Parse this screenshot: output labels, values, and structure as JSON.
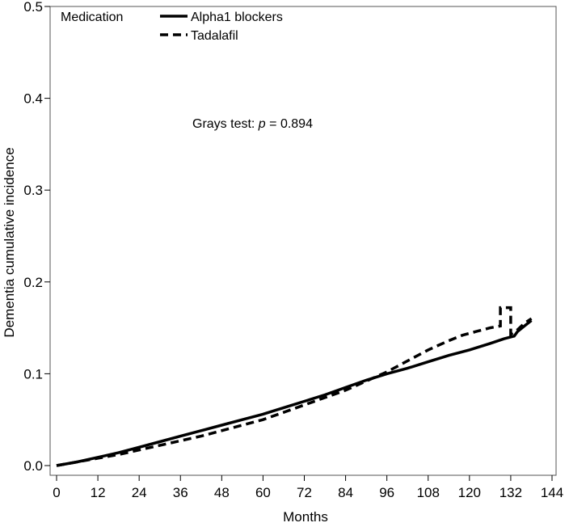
{
  "chart_data": {
    "type": "line",
    "title": "",
    "xlabel": "Months",
    "ylabel": "Dementia cumulative incidence",
    "xlim": [
      0,
      144
    ],
    "ylim": [
      0,
      0.5
    ],
    "xticks": [
      0,
      12,
      24,
      36,
      48,
      60,
      72,
      84,
      96,
      108,
      120,
      132,
      144
    ],
    "yticks": [
      0.0,
      0.1,
      0.2,
      0.3,
      0.4,
      0.5
    ],
    "ytick_labels": [
      "0.0",
      "0.1",
      "0.2",
      "0.3",
      "0.4",
      "0.5"
    ],
    "grid": false,
    "legend": {
      "title": "Medication",
      "placement": "top-left"
    },
    "annotation": {
      "prefix": "Grays test: ",
      "p_symbol": "p",
      "suffix": " = 0.894"
    },
    "series": [
      {
        "name": "Alpha1 blockers",
        "style": "solid",
        "color": "#000000",
        "x": [
          0,
          6,
          12,
          18,
          24,
          30,
          36,
          42,
          48,
          54,
          60,
          66,
          72,
          78,
          84,
          90,
          96,
          102,
          108,
          114,
          120,
          126,
          130,
          133,
          134,
          136,
          138
        ],
        "y": [
          0.0,
          0.004,
          0.009,
          0.014,
          0.02,
          0.026,
          0.032,
          0.038,
          0.044,
          0.05,
          0.056,
          0.063,
          0.07,
          0.077,
          0.085,
          0.093,
          0.1,
          0.106,
          0.113,
          0.12,
          0.126,
          0.133,
          0.138,
          0.141,
          0.146,
          0.152,
          0.158
        ]
      },
      {
        "name": "Tadalafil",
        "style": "dashed",
        "color": "#000000",
        "x": [
          0,
          6,
          12,
          18,
          24,
          30,
          36,
          42,
          48,
          54,
          60,
          66,
          72,
          78,
          84,
          90,
          96,
          102,
          108,
          114,
          118,
          122,
          126,
          129,
          129,
          132,
          132,
          134,
          136,
          138
        ],
        "y": [
          0.0,
          0.004,
          0.008,
          0.012,
          0.017,
          0.022,
          0.027,
          0.032,
          0.038,
          0.044,
          0.05,
          0.058,
          0.066,
          0.074,
          0.082,
          0.092,
          0.102,
          0.114,
          0.126,
          0.136,
          0.142,
          0.146,
          0.15,
          0.152,
          0.172,
          0.172,
          0.143,
          0.148,
          0.155,
          0.16
        ]
      }
    ]
  }
}
